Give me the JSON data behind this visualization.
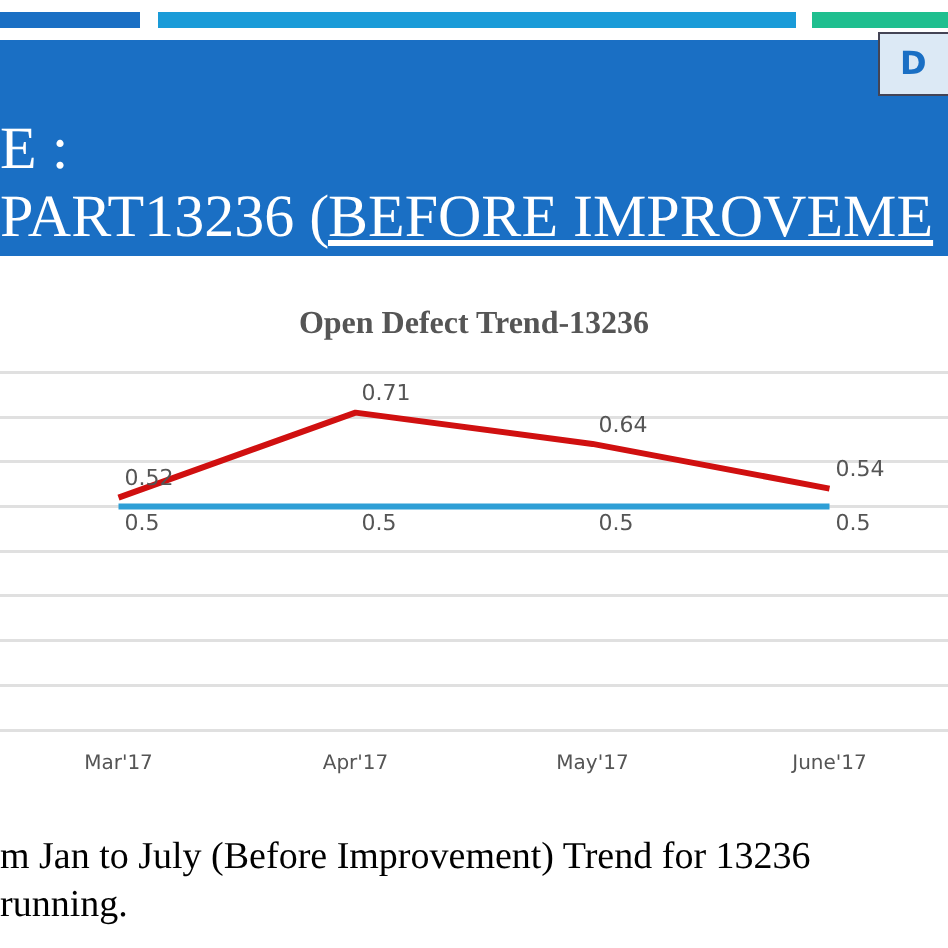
{
  "chart_data": {
    "type": "line",
    "title": "Open Defect Trend-13236",
    "categories": [
      "Mar'17",
      "Apr'17",
      "May'17",
      "June'17"
    ],
    "series": [
      {
        "color": "#d01010",
        "values": [
          0.52,
          0.71,
          0.64,
          0.54
        ]
      },
      {
        "color": "#2e9fd6",
        "values": [
          0.5,
          0.5,
          0.5,
          0.5
        ]
      }
    ],
    "ylim": [
      0,
      0.8
    ],
    "yticks": [
      {
        "value": 0,
        "label": null
      },
      {
        "value": 0.1,
        "label": null
      },
      {
        "value": 0.2,
        "label": null
      },
      {
        "value": 0.3,
        "label": null
      },
      {
        "value": 0.4,
        "label": null
      },
      {
        "value": 0.5,
        "label": null
      },
      {
        "value": 0.6,
        "label": null
      },
      {
        "value": 0.7,
        "label": null
      },
      {
        "value": 0.8,
        "label": null
      }
    ],
    "tick_labels": "x",
    "grid": "y",
    "legend": false,
    "marker": "none",
    "line_style": "solid",
    "data_labels": true,
    "annotations": [
      "E :",
      "PART13236 (",
      "BEFORE IMPROVEME",
      "D",
      "m Jan to July (Before Improvement) Trend for 13236",
      "running."
    ]
  }
}
